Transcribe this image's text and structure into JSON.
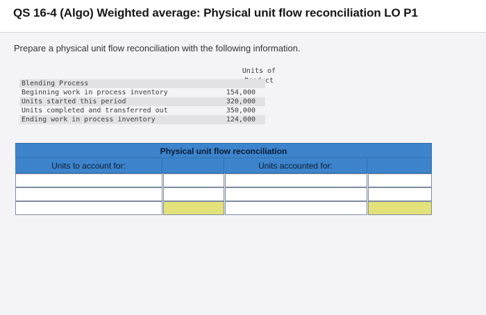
{
  "header": {
    "title": "QS 16-4 (Algo) Weighted average: Physical unit flow reconciliation LO P1"
  },
  "instruction": "Prepare a physical unit flow reconciliation with the following information.",
  "given": {
    "column_header_line1": "Units of",
    "column_header_line2": "Product",
    "rows": [
      {
        "label": "Blending Process",
        "value": ""
      },
      {
        "label": "Beginning work in process inventory",
        "value": "154,000"
      },
      {
        "label": "Units started this period",
        "value": "320,000"
      },
      {
        "label": "Units completed and transferred out",
        "value": "350,000"
      },
      {
        "label": "Ending work in process inventory",
        "value": "124,000"
      }
    ]
  },
  "reconciliation": {
    "caption": "Physical unit flow reconciliation",
    "left_header": "Units to account for:",
    "right_header": "Units accounted for:",
    "colors": {
      "header_blue": "#3d84cc",
      "total_yellow": "#e3e27a"
    }
  }
}
